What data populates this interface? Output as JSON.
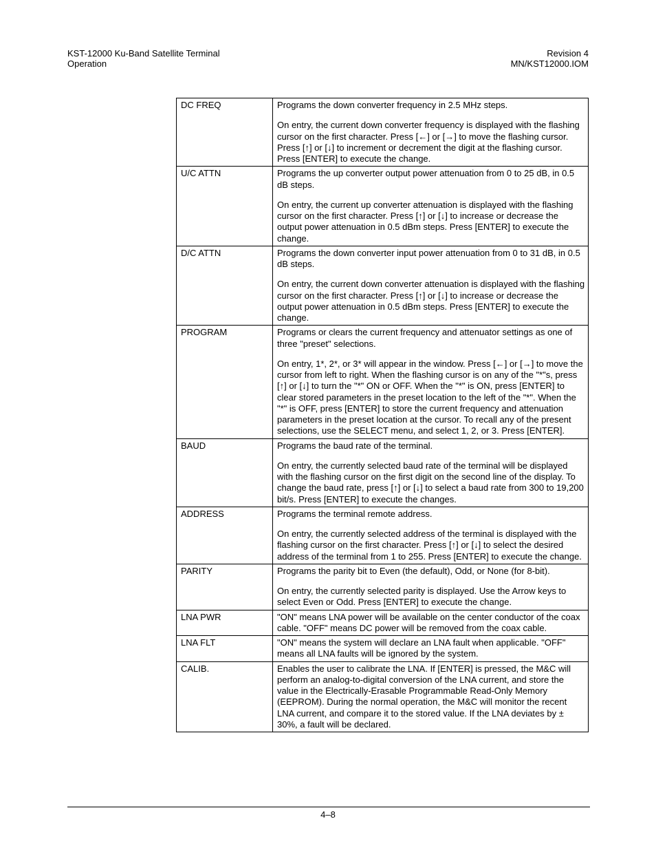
{
  "header": {
    "left_line1": "KST-12000 Ku-Band Satellite Terminal",
    "left_line2": "Operation",
    "right_line1": "Revision 4",
    "right_line2": "MN/KST12000.IOM"
  },
  "footer": {
    "page": "4–8"
  },
  "table": {
    "rows": [
      {
        "name": "DC FREQ",
        "desc": [
          "Programs the down converter frequency in 2.5 MHz steps.",
          "On entry, the current down converter frequency is displayed with the flashing cursor on the first character. Press [←] or [→] to move the flashing cursor. Press [↑] or [↓] to increment or decrement the digit at the flashing cursor. Press [ENTER] to execute the change."
        ]
      },
      {
        "name": "U/C ATTN",
        "desc": [
          "Programs the up converter output power attenuation from 0 to 25 dB, in 0.5 dB steps.",
          "On entry, the current up converter attenuation is displayed with the flashing cursor on the first character. Press [↑] or [↓] to increase or decrease the output power attenuation in 0.5 dBm steps. Press [ENTER] to execute the change."
        ]
      },
      {
        "name": "D/C ATTN",
        "desc": [
          "Programs the down converter input power attenuation from 0 to 31 dB, in 0.5 dB steps.",
          "On entry, the current down converter attenuation is displayed with the flashing cursor on the first character. Press [↑] or [↓] to increase or decrease the output power attenuation in 0.5 dBm steps. Press [ENTER] to execute the change."
        ]
      },
      {
        "name": "PROGRAM",
        "desc": [
          "Programs or clears the current frequency and attenuator settings as one of three \"preset\" selections.",
          "On entry, 1*, 2*, or 3* will appear in the window. Press [←] or [→] to move the cursor from left to right. When the flashing cursor is on any of the \"*\"s, press [↑] or [↓] to turn the \"*\" ON or OFF. When the \"*\" is ON, press [ENTER] to clear stored parameters in the preset location to the left of the \"*\". When the \"*\" is OFF, press [ENTER] to store the current frequency and attenuation parameters in the preset location at the cursor. To recall any of the present selections, use the SELECT menu, and select 1, 2, or 3. Press [ENTER]."
        ]
      },
      {
        "name": "BAUD",
        "desc": [
          "Programs the baud rate of the terminal.",
          "On entry, the currently selected baud rate of the terminal will be displayed with the flashing cursor on the first digit on the second line of the display. To change the baud rate, press [↑] or [↓] to select a baud rate from 300 to 19,200 bit/s. Press [ENTER] to execute the changes."
        ]
      },
      {
        "name": "ADDRESS",
        "desc": [
          "Programs the terminal remote address.",
          "On entry, the currently selected address of the terminal is displayed with the flashing cursor on the first character. Press [↑] or [↓] to select the desired address of the terminal from 1 to 255. Press [ENTER] to execute the change."
        ]
      },
      {
        "name": "PARITY",
        "desc": [
          "Programs the parity bit to Even (the default), Odd, or None (for 8-bit).",
          "On entry, the currently selected parity is displayed. Use the Arrow keys to select Even or Odd. Press [ENTER] to execute the change."
        ]
      },
      {
        "name": "LNA PWR",
        "desc": [
          "\"ON\" means LNA power will be available on the center conductor of the coax cable. \"OFF\" means DC power will be removed from the coax cable."
        ]
      },
      {
        "name": "LNA FLT",
        "desc": [
          "\"ON\" means the system will declare an LNA fault when applicable. \"OFF\" means all LNA faults will be ignored by the system."
        ]
      },
      {
        "name": "CALIB.",
        "desc": [
          "Enables the user to calibrate the LNA. If [ENTER] is pressed, the M&C will perform an analog-to-digital conversion of the LNA current, and store the value in the Electrically-Erasable Programmable Read-Only Memory (EEPROM). During the normal operation, the M&C will monitor the recent LNA current, and compare it to the stored value. If the LNA deviates by ± 30%, a fault will be declared."
        ]
      }
    ]
  }
}
